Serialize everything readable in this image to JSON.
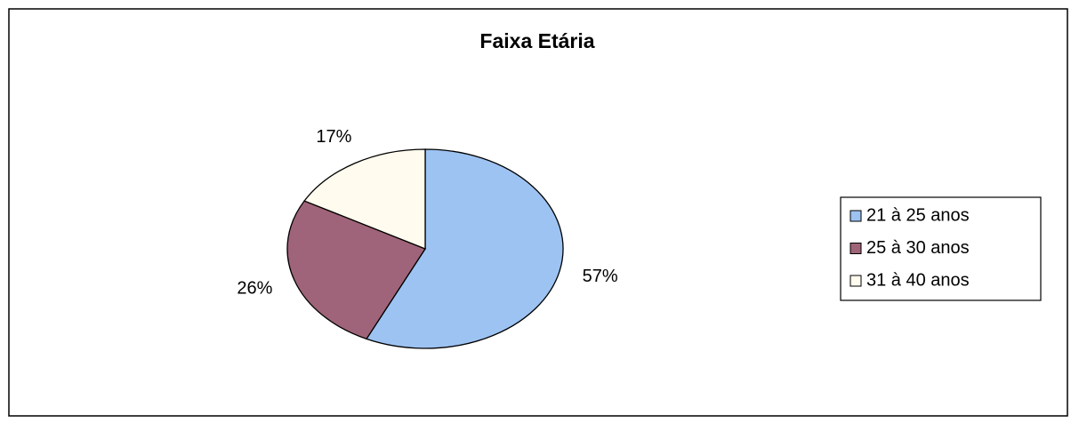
{
  "chart_data": {
    "type": "pie",
    "title": "Faixa Etária",
    "categories": [
      "21 à 25 anos",
      "25 à 30 anos",
      "31 à 40 anos"
    ],
    "values": [
      57,
      26,
      17
    ],
    "value_labels": [
      "57%",
      "26%",
      "17%"
    ],
    "colors": [
      "#9dc3f2",
      "#9f6479",
      "#fffbee"
    ],
    "legend": "right"
  }
}
